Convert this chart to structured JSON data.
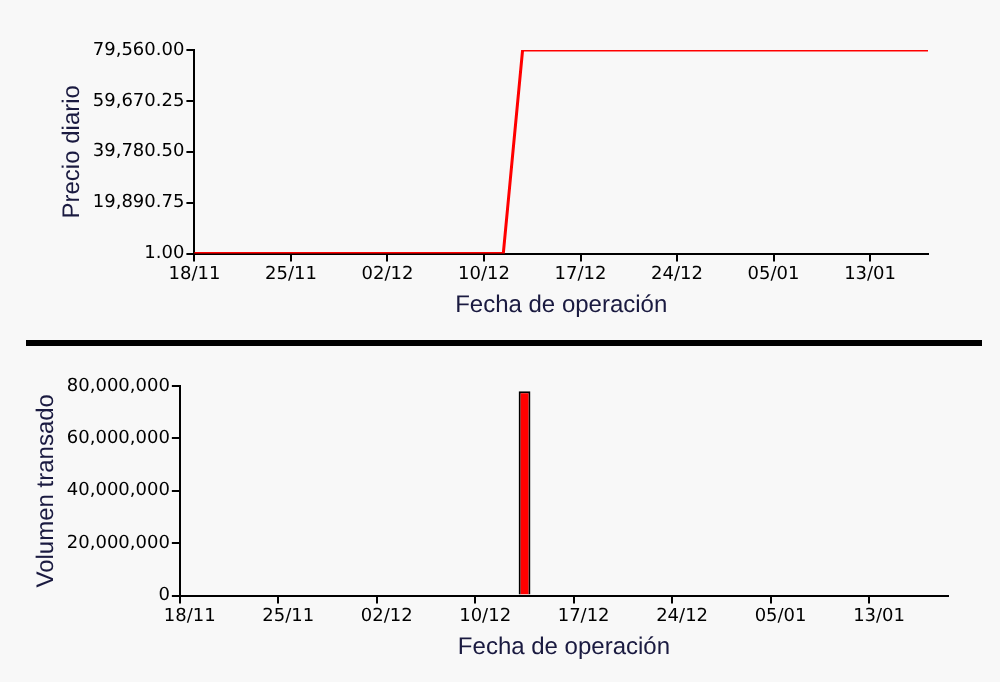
{
  "chart_data": [
    {
      "type": "line",
      "xlabel": "Fecha de operación",
      "ylabel": "Precio diario",
      "categories": [
        "18/11",
        null,
        null,
        null,
        null,
        "25/11",
        null,
        null,
        null,
        null,
        "02/12",
        null,
        null,
        null,
        null,
        "10/12",
        null,
        null,
        null,
        null,
        "17/12",
        null,
        null,
        null,
        null,
        "24/12",
        null,
        null,
        null,
        null,
        "05/01",
        null,
        null,
        null,
        null,
        "13/01",
        null,
        null,
        null
      ],
      "series": [
        {
          "color": "#ff0000",
          "values": [
            1,
            1,
            1,
            1,
            1,
            1,
            1,
            1,
            1,
            1,
            1,
            1,
            1,
            1,
            1,
            1,
            1,
            79560,
            79560,
            79560,
            79560,
            79560,
            79560,
            79560,
            79560,
            79560,
            79560,
            79560,
            79560,
            79560,
            79560,
            79560,
            79560,
            79560,
            79560,
            79560,
            79560,
            79560,
            79560
          ]
        }
      ],
      "ylim": [
        1,
        79560
      ],
      "yticks": [
        {
          "value": 1,
          "label": "1.00"
        },
        {
          "value": 19890.75,
          "label": "19,890.75"
        },
        {
          "value": 39780.5,
          "label": "39,780.50"
        },
        {
          "value": 59670.25,
          "label": "59,670.25"
        },
        {
          "value": 79560,
          "label": "79,560.00"
        }
      ],
      "grid": false,
      "legend": false,
      "marker": "none"
    },
    {
      "type": "bar",
      "xlabel": "Fecha de operación",
      "ylabel": "Volumen transado",
      "categories": [
        "18/11",
        null,
        null,
        null,
        null,
        "25/11",
        null,
        null,
        null,
        null,
        "02/12",
        null,
        null,
        null,
        null,
        "10/12",
        null,
        null,
        null,
        null,
        "17/12",
        null,
        null,
        null,
        null,
        "24/12",
        null,
        null,
        null,
        null,
        "05/01",
        null,
        null,
        null,
        null,
        "13/01",
        null,
        null,
        null
      ],
      "series": [
        {
          "color": "#ff0000",
          "values": [
            0,
            0,
            0,
            0,
            0,
            0,
            0,
            0,
            0,
            0,
            0,
            0,
            0,
            0,
            0,
            0,
            0,
            78000000,
            0,
            0,
            0,
            0,
            0,
            0,
            0,
            0,
            0,
            0,
            0,
            0,
            0,
            0,
            0,
            0,
            0,
            0,
            0,
            0,
            0
          ]
        }
      ],
      "ylim": [
        0,
        80000000
      ],
      "yticks": [
        0,
        {
          "value": 20000000,
          "label": "20,000,000"
        },
        {
          "value": 40000000,
          "label": "40,000,000"
        },
        {
          "value": 60000000,
          "label": "60,000,000"
        },
        {
          "value": 80000000,
          "label": "80,000,000"
        }
      ],
      "grid": false,
      "legend": false
    }
  ]
}
